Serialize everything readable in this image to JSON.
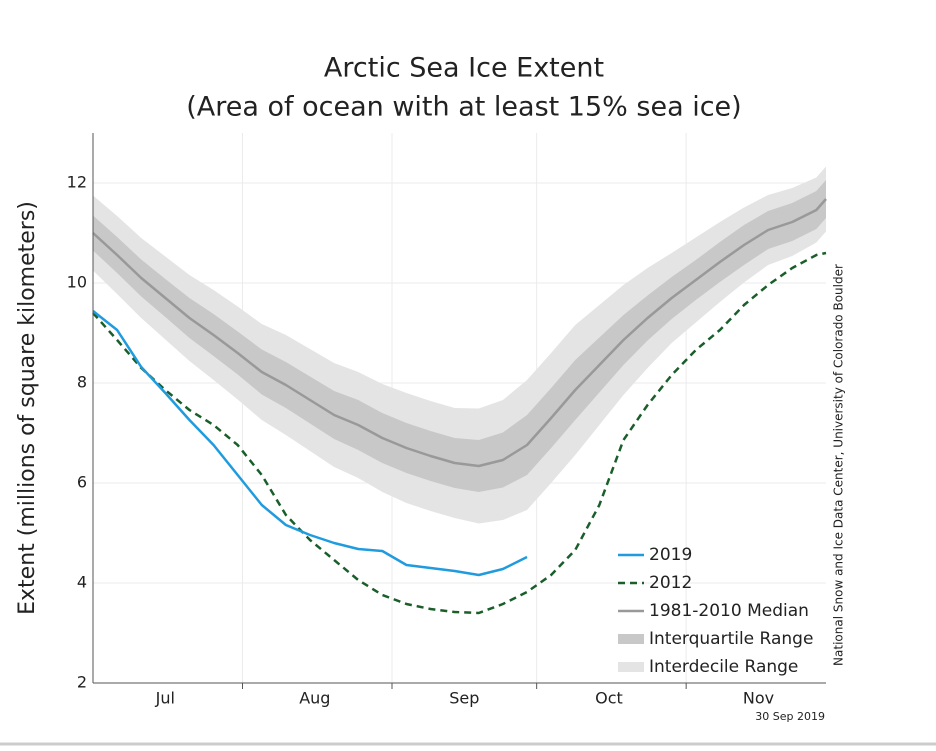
{
  "chart_data": {
    "type": "line",
    "title": "Arctic Sea Ice Extent",
    "subtitle": "(Area of ocean with at least 15% sea ice)",
    "y_label": "Extent (millions of square kilometers)",
    "source": "National Snow and Ice Data Center, University of Colorado Boulder",
    "date": "30 Sep 2019",
    "xlim": [
      0,
      152
    ],
    "xticks": [
      {
        "value": 15,
        "label": "Jul"
      },
      {
        "value": 46,
        "label": "Aug"
      },
      {
        "value": 77,
        "label": "Sep"
      },
      {
        "value": 107,
        "label": "Oct"
      },
      {
        "value": 138,
        "label": "Nov"
      }
    ],
    "x_dividers": [
      31,
      62,
      92,
      123
    ],
    "ylim": [
      2,
      13
    ],
    "yticks": [
      2,
      4,
      6,
      8,
      10,
      12
    ],
    "grid": true,
    "x": [
      0,
      5,
      10,
      15,
      20,
      25,
      30,
      35,
      40,
      45,
      50,
      55,
      60,
      65,
      70,
      75,
      80,
      85,
      90,
      95,
      100,
      105,
      110,
      115,
      120,
      125,
      130,
      135,
      140,
      145,
      150,
      152
    ],
    "bands": [
      {
        "name": "Interdecile Range",
        "color": "#e4e4e4",
        "lower": [
          10.25,
          9.78,
          9.3,
          8.87,
          8.44,
          8.06,
          7.67,
          7.26,
          6.96,
          6.64,
          6.32,
          6.1,
          5.82,
          5.6,
          5.44,
          5.3,
          5.19,
          5.26,
          5.46,
          6.0,
          6.56,
          7.16,
          7.76,
          8.3,
          8.8,
          9.21,
          9.62,
          10.01,
          10.36,
          10.54,
          10.81,
          11.03
        ],
        "upper": [
          11.75,
          11.34,
          10.9,
          10.53,
          10.16,
          9.86,
          9.53,
          9.18,
          8.96,
          8.68,
          8.4,
          8.22,
          7.98,
          7.8,
          7.64,
          7.5,
          7.49,
          7.66,
          8.06,
          8.6,
          9.16,
          9.56,
          9.96,
          10.3,
          10.6,
          10.91,
          11.22,
          11.51,
          11.76,
          11.9,
          12.11,
          12.33
        ]
      },
      {
        "name": "Interquartile Range",
        "color": "#c8c8c8",
        "lower": [
          10.65,
          10.2,
          9.73,
          9.32,
          8.9,
          8.54,
          8.17,
          7.77,
          7.5,
          7.19,
          6.88,
          6.66,
          6.4,
          6.2,
          6.04,
          5.9,
          5.82,
          5.91,
          6.16,
          6.7,
          7.26,
          7.81,
          8.36,
          8.85,
          9.28,
          9.66,
          10.02,
          10.36,
          10.68,
          10.84,
          11.08,
          11.3
        ],
        "upper": [
          11.35,
          10.92,
          10.47,
          10.08,
          9.7,
          9.38,
          9.03,
          8.67,
          8.42,
          8.13,
          7.84,
          7.66,
          7.4,
          7.2,
          7.04,
          6.9,
          6.86,
          7.01,
          7.36,
          7.9,
          8.46,
          8.91,
          9.36,
          9.75,
          10.12,
          10.46,
          10.82,
          11.16,
          11.44,
          11.6,
          11.84,
          12.06
        ]
      }
    ],
    "series": [
      {
        "name": "2019",
        "color": "#1f9bde",
        "dash": false,
        "x": [
          0,
          5,
          10,
          15,
          20,
          25,
          30,
          35,
          40,
          45,
          50,
          55,
          60,
          65,
          70,
          75,
          80,
          85,
          90
        ],
        "values": [
          9.44,
          9.06,
          8.32,
          7.8,
          7.26,
          6.76,
          6.16,
          5.56,
          5.16,
          4.96,
          4.8,
          4.68,
          4.64,
          4.36,
          4.3,
          4.24,
          4.16,
          4.28,
          4.52
        ]
      },
      {
        "name": "2012",
        "color": "#1a5e2a",
        "dash": true,
        "x": [
          0,
          5,
          10,
          15,
          20,
          25,
          30,
          35,
          40,
          45,
          50,
          55,
          60,
          65,
          70,
          75,
          80,
          85,
          90,
          95,
          100,
          105,
          110,
          115,
          120,
          125,
          130,
          135,
          140,
          145,
          150,
          152
        ],
        "values": [
          9.4,
          8.86,
          8.3,
          7.86,
          7.46,
          7.16,
          6.76,
          6.16,
          5.36,
          4.86,
          4.46,
          4.06,
          3.76,
          3.58,
          3.48,
          3.42,
          3.4,
          3.58,
          3.82,
          4.16,
          4.66,
          5.56,
          6.86,
          7.56,
          8.16,
          8.66,
          9.06,
          9.56,
          9.96,
          10.3,
          10.56,
          10.6
        ]
      },
      {
        "name": "1981-2010 Median",
        "color": "#999999",
        "dash": false,
        "values": [
          11.0,
          10.56,
          10.1,
          9.7,
          9.3,
          8.96,
          8.6,
          8.22,
          7.96,
          7.66,
          7.36,
          7.16,
          6.9,
          6.7,
          6.54,
          6.4,
          6.34,
          6.46,
          6.76,
          7.3,
          7.86,
          8.36,
          8.86,
          9.3,
          9.7,
          10.06,
          10.42,
          10.76,
          11.06,
          11.22,
          11.46,
          11.68
        ]
      }
    ]
  }
}
